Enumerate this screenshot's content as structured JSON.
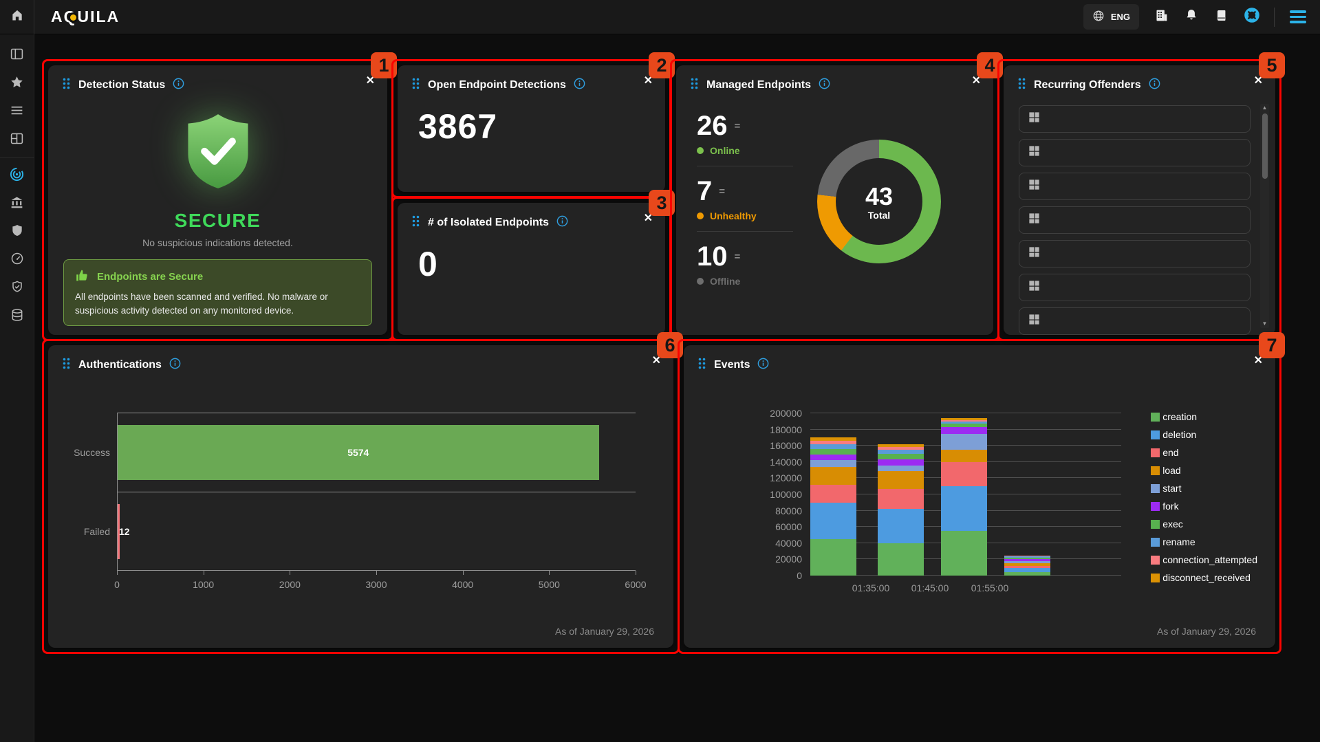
{
  "topbar": {
    "logo": "AQUILA",
    "language": "ENG",
    "icons": [
      "home-icon",
      "globe-icon",
      "organization-icon",
      "notifications-icon",
      "documentation-icon",
      "help-ring-icon",
      "menu-icon"
    ]
  },
  "sidebar": {
    "items": [
      "panel-icon",
      "star-icon",
      "list-icon",
      "layout-grid-icon",
      "threat-radar-icon",
      "bank-icon",
      "shield-icon",
      "gauge-icon",
      "shield-check-icon",
      "database-icon"
    ],
    "active": "threat-radar-icon"
  },
  "annotations": {
    "badges": [
      "1",
      "2",
      "3",
      "4",
      "5",
      "6",
      "7"
    ]
  },
  "cards": {
    "detection_status": {
      "title": "Detection Status",
      "status": "SECURE",
      "message": "No suspicious indications detected.",
      "alert": {
        "title": "Endpoints are Secure",
        "body": "All endpoints have been scanned and verified. No malware or suspicious activity detected on any monitored device."
      }
    },
    "open_endpoint_detections": {
      "title": "Open Endpoint Detections",
      "value": "3867"
    },
    "isolated_endpoints": {
      "title": "# of Isolated Endpoints",
      "value": "0"
    },
    "managed_endpoints": {
      "title": "Managed Endpoints",
      "stats": [
        {
          "value": "26",
          "trend": "=",
          "label": "Online",
          "color": "#7cc14d"
        },
        {
          "value": "7",
          "trend": "=",
          "label": "Unhealthy",
          "color": "#ef9a02"
        },
        {
          "value": "10",
          "trend": "=",
          "label": "Offline",
          "color": "#6e6e6e"
        }
      ]
    },
    "recurring_offenders": {
      "title": "Recurring Offenders",
      "rows": [
        {
          "icon": "windows-icon",
          "label": ""
        },
        {
          "icon": "windows-icon",
          "label": ""
        },
        {
          "icon": "windows-icon",
          "label": ""
        },
        {
          "icon": "windows-icon",
          "label": ""
        },
        {
          "icon": "windows-icon",
          "label": ""
        },
        {
          "icon": "windows-icon",
          "label": ""
        },
        {
          "icon": "windows-icon",
          "label": ""
        }
      ]
    },
    "authentications": {
      "title": "Authentications",
      "as_of": "As of January 29, 2026"
    },
    "events": {
      "title": "Events",
      "as_of": "As of January 29, 2026"
    }
  },
  "chart_data": [
    {
      "id": "managed_endpoints_donut",
      "type": "pie",
      "donut": true,
      "labels": [
        "Online",
        "Unhealthy",
        "Offline"
      ],
      "values": [
        26,
        7,
        10
      ],
      "colors": [
        "#6cb84e",
        "#ef9a02",
        "#686868"
      ],
      "center_value": "43",
      "center_label": "Total"
    },
    {
      "id": "authentications",
      "type": "bar",
      "orientation": "horizontal",
      "categories": [
        "Success",
        "Failed"
      ],
      "values": [
        5574,
        12
      ],
      "colors": [
        "#6aa954",
        "#f4767b"
      ],
      "xlim": [
        0,
        6000
      ],
      "xticks": [
        0,
        1000,
        2000,
        3000,
        4000,
        5000,
        6000
      ],
      "grid": true
    },
    {
      "id": "events",
      "type": "bar",
      "stacked": true,
      "x_tick_labels": [
        "01:35:00",
        "01:45:00",
        "01:55:00"
      ],
      "ylim": [
        0,
        200000
      ],
      "ytick_step": 20000,
      "legend_position": "right",
      "series": [
        {
          "name": "creation",
          "color": "#61b15a",
          "values": [
            45000,
            40000,
            55000,
            4000
          ]
        },
        {
          "name": "deletion",
          "color": "#4d9be0",
          "values": [
            45000,
            42000,
            55000,
            5000
          ]
        },
        {
          "name": "end",
          "color": "#f2686c",
          "values": [
            22000,
            25000,
            30000,
            3000
          ]
        },
        {
          "name": "load",
          "color": "#d88d03",
          "values": [
            22000,
            22000,
            15000,
            3000
          ]
        },
        {
          "name": "start",
          "color": "#7d9fd6",
          "values": [
            8000,
            7000,
            20000,
            3000
          ]
        },
        {
          "name": "fork",
          "color": "#9c2bf2",
          "values": [
            7000,
            7000,
            8000,
            2000
          ]
        },
        {
          "name": "exec",
          "color": "#58b14f",
          "values": [
            7000,
            7000,
            4000,
            2000
          ]
        },
        {
          "name": "rename",
          "color": "#5a9bd8",
          "values": [
            6000,
            5000,
            3000,
            1500
          ]
        },
        {
          "name": "connection_attempted",
          "color": "#f97c80",
          "values": [
            4000,
            3500,
            2000,
            800
          ]
        },
        {
          "name": "disconnect_received",
          "color": "#dc9204",
          "values": [
            4000,
            3500,
            2000,
            700
          ]
        }
      ]
    }
  ]
}
